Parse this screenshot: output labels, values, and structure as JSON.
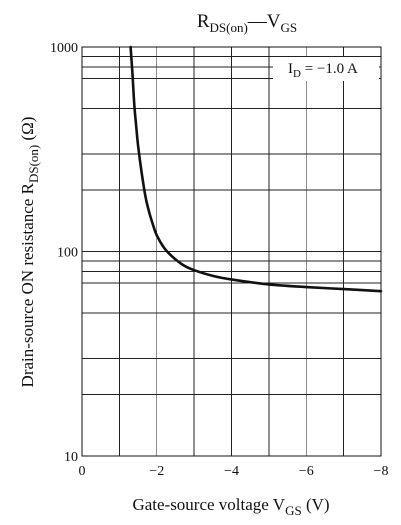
{
  "chart_data": {
    "type": "line",
    "title": {
      "main": "R",
      "main_sub": "DS(on)",
      "dash": "—",
      "var": "V",
      "var_sub": "GS"
    },
    "xlabel": {
      "prefix": "Gate-source voltage  V",
      "sub": "GS",
      "unit": "  (V)"
    },
    "ylabel": {
      "prefix": "Drain-source ON resistance  R",
      "sub": "DS(on)",
      "unit": "  (Ω)"
    },
    "annotation": {
      "prefix": "I",
      "sub": "D",
      "suffix": " = −1.0 A"
    },
    "x_axis": {
      "range": [
        0,
        -8
      ],
      "ticks": [
        {
          "value": 0,
          "label": "0"
        },
        {
          "value": -2,
          "label": "−2"
        },
        {
          "value": -4,
          "label": "−4"
        },
        {
          "value": -6,
          "label": "−6"
        },
        {
          "value": -8,
          "label": "−8"
        }
      ],
      "gridlines": [
        -1,
        -2,
        -3,
        -4,
        -5,
        -6,
        -7
      ]
    },
    "y_axis": {
      "scale": "log",
      "range": [
        10,
        1000
      ],
      "ticks": [
        {
          "value": 10,
          "label": "10"
        },
        {
          "value": 100,
          "label": "100"
        },
        {
          "value": 1000,
          "label": "1000"
        }
      ],
      "gridlines": [
        20,
        30,
        50,
        70,
        80,
        90,
        100,
        200,
        300,
        500,
        700,
        800,
        900
      ]
    },
    "grid": true,
    "series": [
      {
        "x": [
          -1.3,
          -1.35,
          -1.4,
          -1.45,
          -1.5,
          -1.6,
          -1.7,
          -1.8,
          -1.9,
          -2.0,
          -2.2,
          -2.4,
          -2.7,
          -3.0,
          -3.5,
          -4.0,
          -5.0,
          -6.0,
          -7.0,
          -8.0
        ],
        "y": [
          1000,
          740,
          520,
          410,
          330,
          240,
          185,
          155,
          135,
          120,
          104,
          95,
          86,
          81,
          76,
          73,
          69,
          67,
          65.5,
          64
        ]
      }
    ]
  }
}
